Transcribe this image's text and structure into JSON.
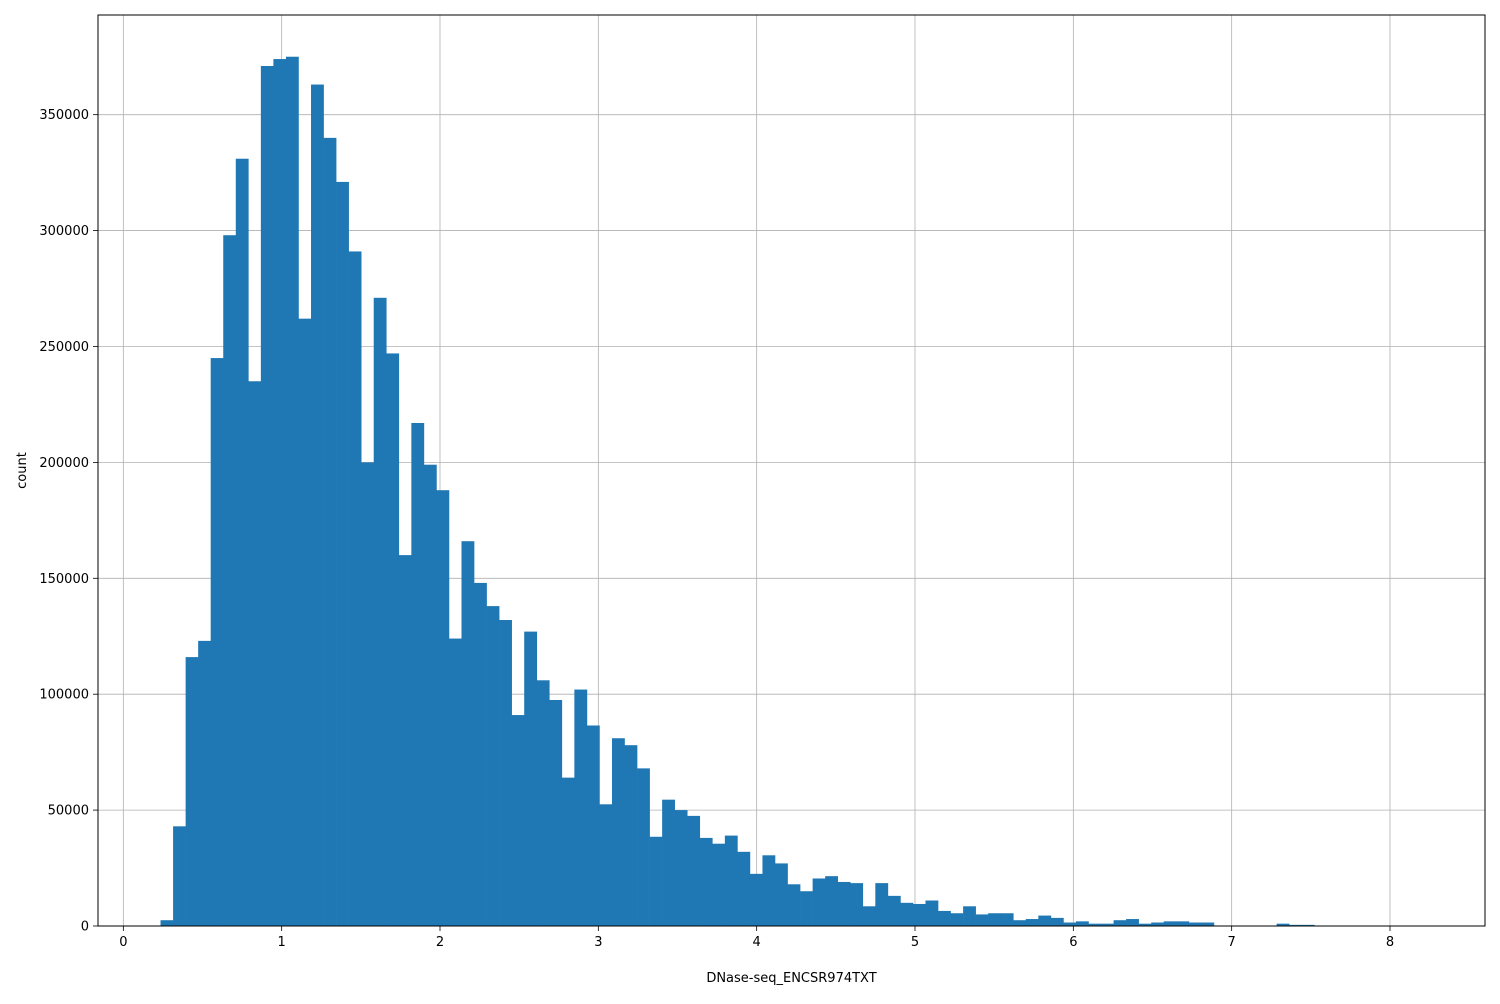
{
  "chart_data": {
    "type": "bar",
    "xlabel": "DNase-seq_ENCSR974TXT",
    "ylabel": "count",
    "xlim": [
      -0.16,
      8.6
    ],
    "ylim": [
      0,
      393000
    ],
    "grid": true,
    "bar_color": "#1f77b4",
    "grid_color": "#b0b0b0",
    "x_ticks": [
      0,
      1,
      2,
      3,
      4,
      5,
      6,
      7,
      8
    ],
    "y_ticks": [
      0,
      50000,
      100000,
      150000,
      200000,
      250000,
      300000,
      350000
    ],
    "x_tick_labels": [
      "0",
      "1",
      "2",
      "3",
      "4",
      "5",
      "6",
      "7",
      "8"
    ],
    "y_tick_labels": [
      "0",
      "50000",
      "100000",
      "150000",
      "200000",
      "250000",
      "300000",
      "350000"
    ],
    "bin_start": 0.235,
    "bin_width": 0.0792,
    "values": [
      2500,
      43000,
      116000,
      123000,
      245000,
      298000,
      331000,
      235000,
      371000,
      374000,
      375000,
      262000,
      363000,
      340000,
      321000,
      291000,
      200000,
      271000,
      247000,
      160000,
      217000,
      199000,
      188000,
      124000,
      166000,
      148000,
      138000,
      132000,
      91000,
      127000,
      106000,
      97500,
      64000,
      102000,
      86500,
      52500,
      81000,
      78000,
      68000,
      38500,
      54500,
      50000,
      47500,
      38000,
      35500,
      39000,
      32000,
      22500,
      30500,
      27000,
      18000,
      15000,
      20500,
      21500,
      19000,
      18500,
      8500,
      18500,
      13000,
      10000,
      9500,
      11000,
      6500,
      5500,
      8500,
      5000,
      5500,
      5500,
      2500,
      3000,
      4500,
      3500,
      1500,
      2000,
      1000,
      1000,
      2500,
      3000,
      1000,
      1500,
      2000,
      2000,
      1500,
      1500,
      0,
      0,
      0,
      0,
      0,
      1000,
      500,
      500,
      0,
      0,
      0,
      0,
      0,
      0,
      0,
      0,
      0,
      0,
      0,
      0,
      0,
      0,
      0
    ]
  }
}
